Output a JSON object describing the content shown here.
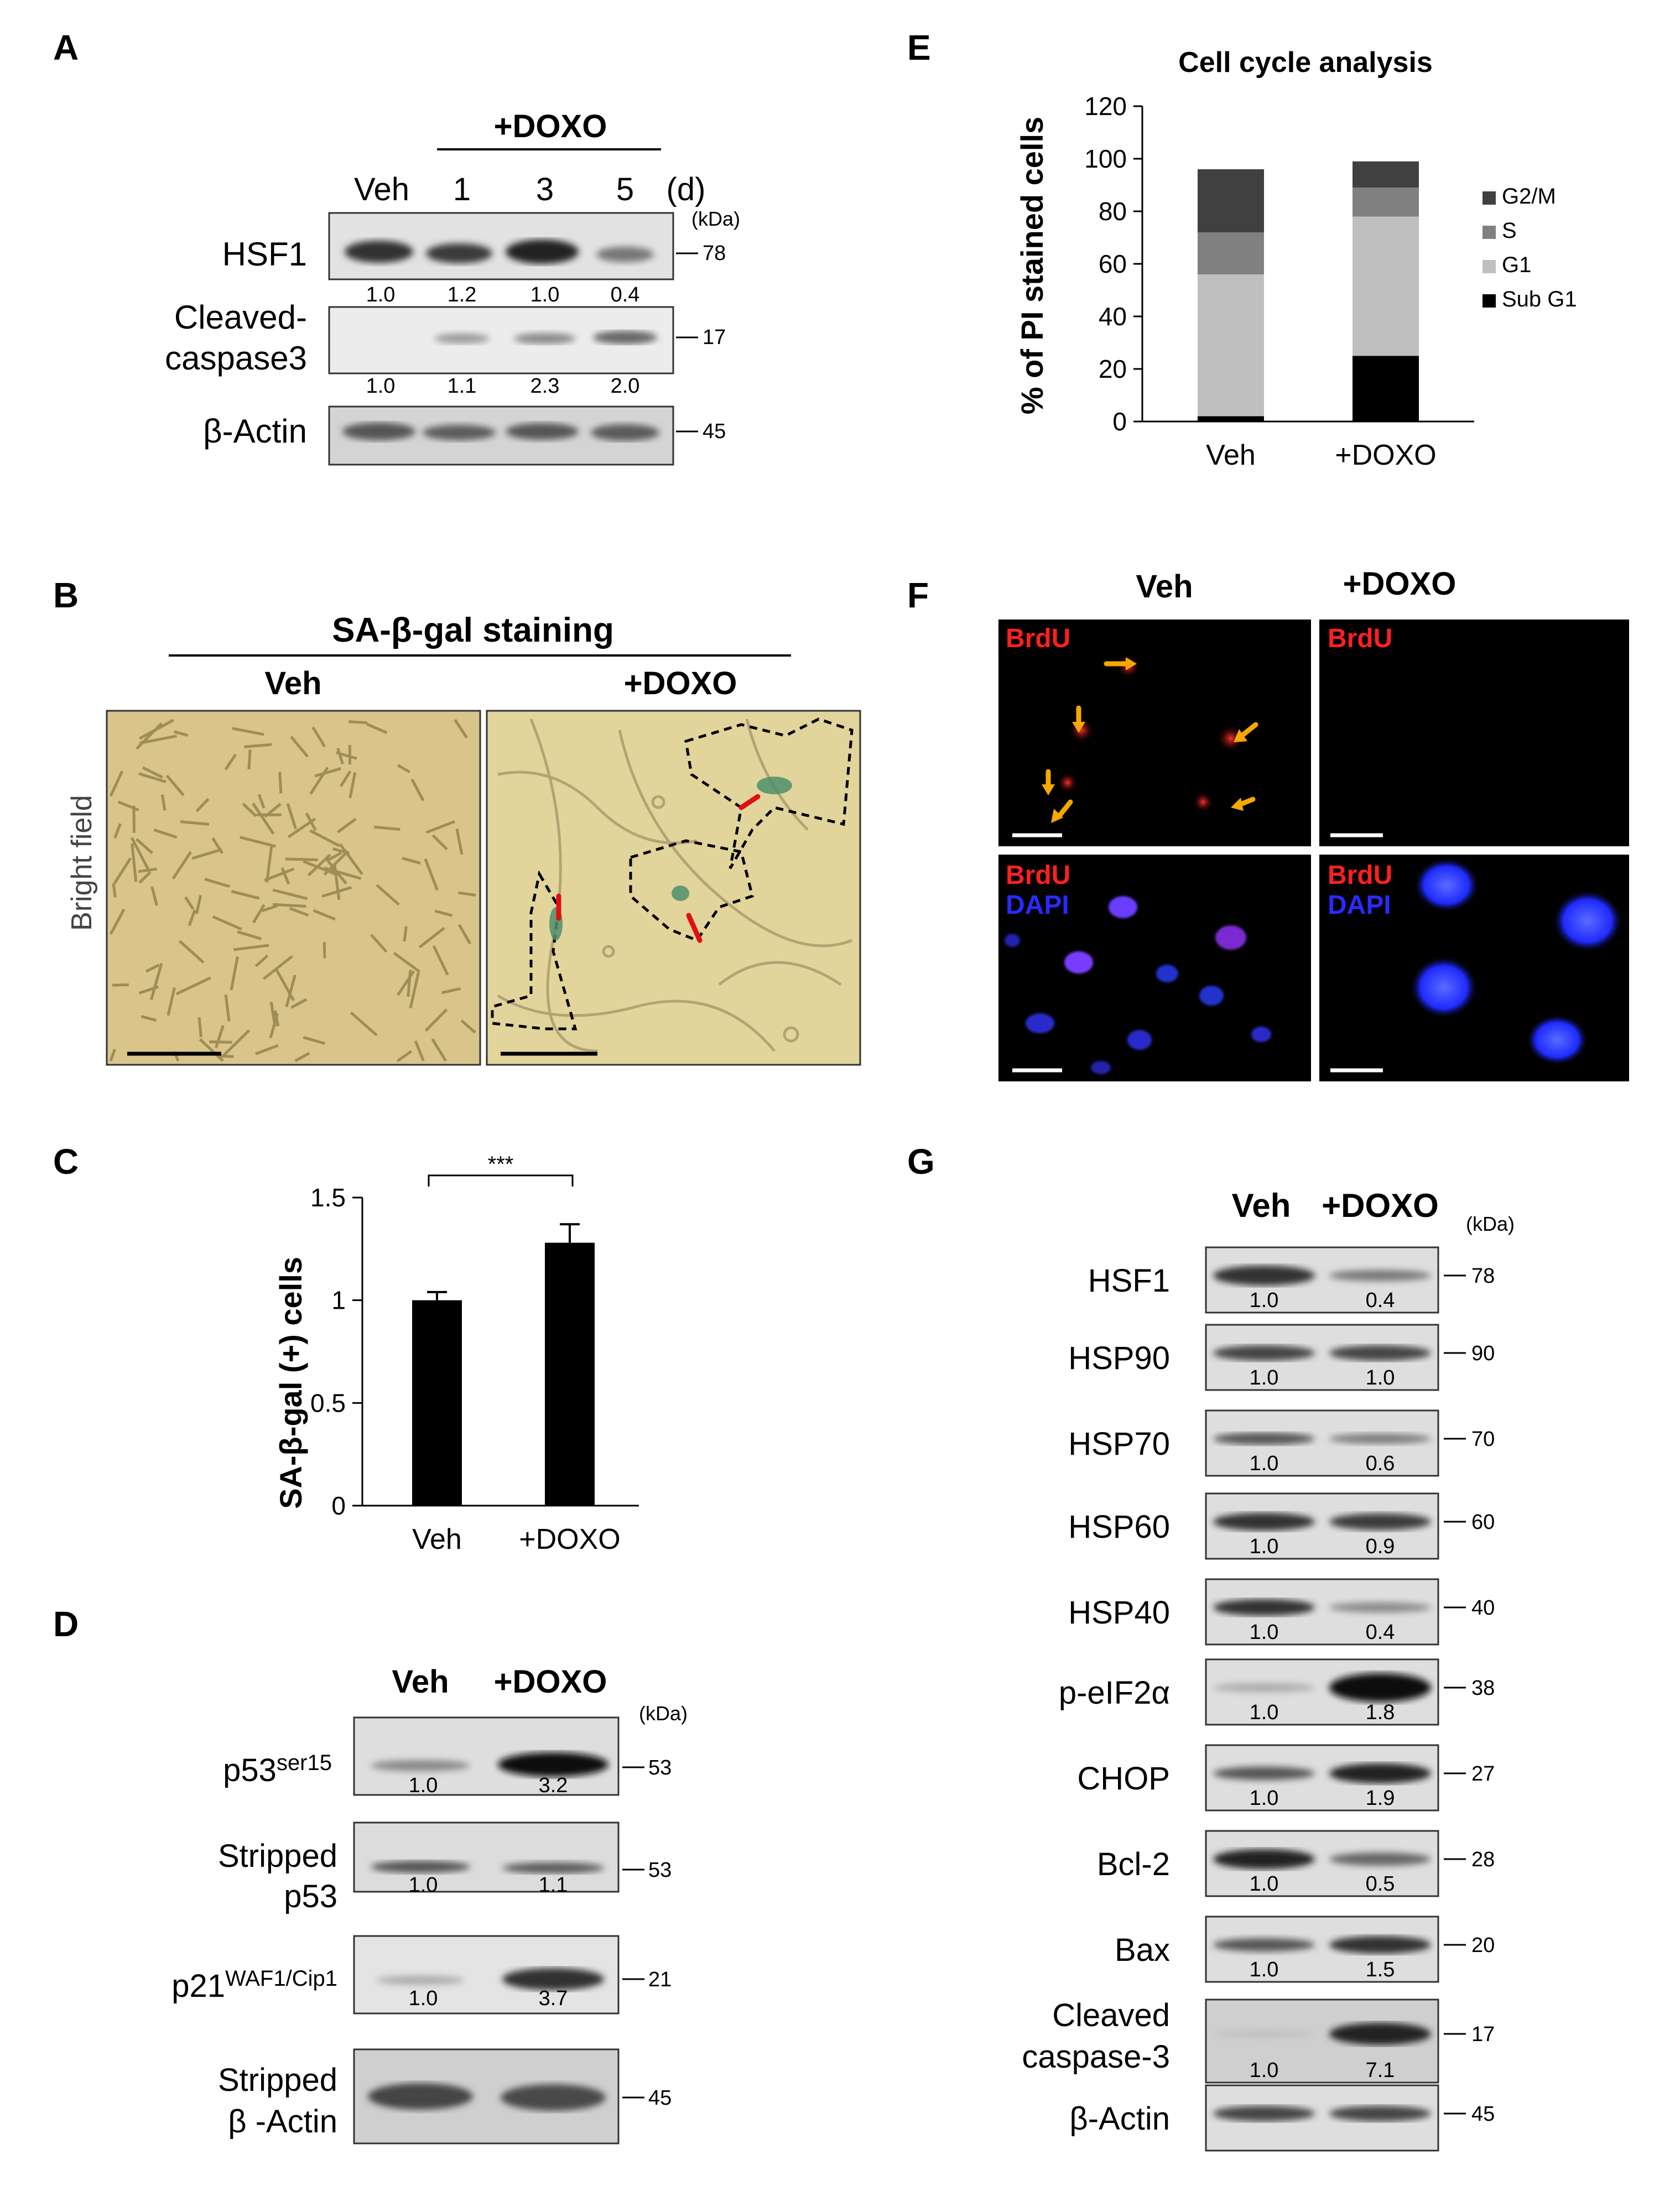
{
  "panel_letters": {
    "A": "A",
    "B": "B",
    "C": "C",
    "D": "D",
    "E": "E",
    "F": "F",
    "G": "G"
  },
  "panel_a": {
    "doxo_header": "+DOXO",
    "lanes": [
      "Veh",
      "1",
      "3",
      "5"
    ],
    "days_unit": "(d)",
    "kda_label": "(kDa)",
    "rows": [
      {
        "label": [
          "HSF1"
        ],
        "marker": "78",
        "values": [
          "1.0",
          "1.2",
          "1.0",
          "0.4"
        ]
      },
      {
        "label": [
          "Cleaved-",
          "caspase3"
        ],
        "marker": "17",
        "values": [
          "1.0",
          "1.1",
          "2.3",
          "2.0"
        ]
      },
      {
        "label": [
          "β-Actin"
        ],
        "marker": "45",
        "values": []
      }
    ]
  },
  "panel_b": {
    "title": "SA-β-gal staining",
    "col_veh": "Veh",
    "col_doxo": "+DOXO",
    "side_label": "Bright field"
  },
  "panel_c": {
    "significance": "***",
    "chart_data": {
      "type": "bar",
      "categories": [
        "Veh",
        "+DOXO"
      ],
      "values": [
        1.0,
        1.28
      ],
      "errors": [
        0.04,
        0.09
      ],
      "ylabel": "SA-β-gal  (+) cells",
      "ylim": [
        0,
        1.5
      ],
      "yticks": [
        "0",
        "0.5",
        "1",
        "1.5"
      ],
      "bar_color": "#000000"
    }
  },
  "panel_d": {
    "lanes": [
      "Veh",
      "+DOXO"
    ],
    "kda_label": "(kDa)",
    "rows": [
      {
        "label": [
          "p53ser15"
        ],
        "base": "p53",
        "sup": "ser15",
        "marker": "53",
        "values": [
          "1.0",
          "3.2"
        ]
      },
      {
        "label": [
          "Stripped",
          "p53"
        ],
        "marker": "53",
        "values": [
          "1.0",
          "1.1"
        ]
      },
      {
        "label": [
          "p21WAF1/Cip1"
        ],
        "base": "p21",
        "sup": "WAF1/Cip1",
        "marker": "21",
        "values": [
          "1.0",
          "3.7"
        ]
      },
      {
        "label": [
          "Stripped",
          "β -Actin"
        ],
        "marker": "45",
        "values": []
      }
    ]
  },
  "panel_e": {
    "chart_data": {
      "type": "bar",
      "stacked": true,
      "title": "Cell cycle analysis",
      "categories": [
        "Veh",
        "+DOXO"
      ],
      "series": [
        {
          "name": "Sub G1",
          "values": [
            2,
            25
          ],
          "color": "#000000"
        },
        {
          "name": "G1",
          "values": [
            54,
            53
          ],
          "color": "#bfbfbf"
        },
        {
          "name": "S",
          "values": [
            16,
            11
          ],
          "color": "#808080"
        },
        {
          "name": "G2/M",
          "values": [
            24,
            10
          ],
          "color": "#404040"
        }
      ],
      "ylabel": "% of PI stained cells",
      "ylim": [
        0,
        120
      ],
      "yticks": [
        "0",
        "20",
        "40",
        "60",
        "80",
        "100",
        "120"
      ],
      "legend": "right"
    },
    "legend_order": [
      "G2/M",
      "S",
      "G1",
      "Sub G1"
    ]
  },
  "panel_f": {
    "col_veh": "Veh",
    "col_doxo": "+DOXO",
    "brdu": "BrdU",
    "dapi": "DAPI"
  },
  "panel_g": {
    "lanes": [
      "Veh",
      "+DOXO"
    ],
    "kda_label": "(kDa)",
    "rows": [
      {
        "label": [
          "HSF1"
        ],
        "marker": "78",
        "values": [
          "1.0",
          "0.4"
        ]
      },
      {
        "label": [
          "HSP90"
        ],
        "marker": "90",
        "values": [
          "1.0",
          "1.0"
        ]
      },
      {
        "label": [
          "HSP70"
        ],
        "marker": "70",
        "values": [
          "1.0",
          "0.6"
        ]
      },
      {
        "label": [
          "HSP60"
        ],
        "marker": "60",
        "values": [
          "1.0",
          "0.9"
        ]
      },
      {
        "label": [
          "HSP40"
        ],
        "marker": "40",
        "values": [
          "1.0",
          "0.4"
        ]
      },
      {
        "label": [
          "p-eIF2α"
        ],
        "marker": "38",
        "values": [
          "1.0",
          "1.8"
        ]
      },
      {
        "label": [
          "CHOP"
        ],
        "marker": "27",
        "values": [
          "1.0",
          "1.9"
        ]
      },
      {
        "label": [
          "Bcl-2"
        ],
        "marker": "28",
        "values": [
          "1.0",
          "0.5"
        ]
      },
      {
        "label": [
          "Bax"
        ],
        "marker": "20",
        "values": [
          "1.0",
          "1.5"
        ]
      },
      {
        "label": [
          "Cleaved",
          "caspase-3"
        ],
        "marker": "17",
        "values": [
          "1.0",
          "7.1"
        ]
      },
      {
        "label": [
          "β-Actin"
        ],
        "marker": "45",
        "values": []
      }
    ]
  },
  "colors": {
    "arrow_yellow": "#f5a800",
    "arrow_red": "#e01010",
    "brdu_red": "#ff2020",
    "dapi_blue": "#2a2aff"
  }
}
